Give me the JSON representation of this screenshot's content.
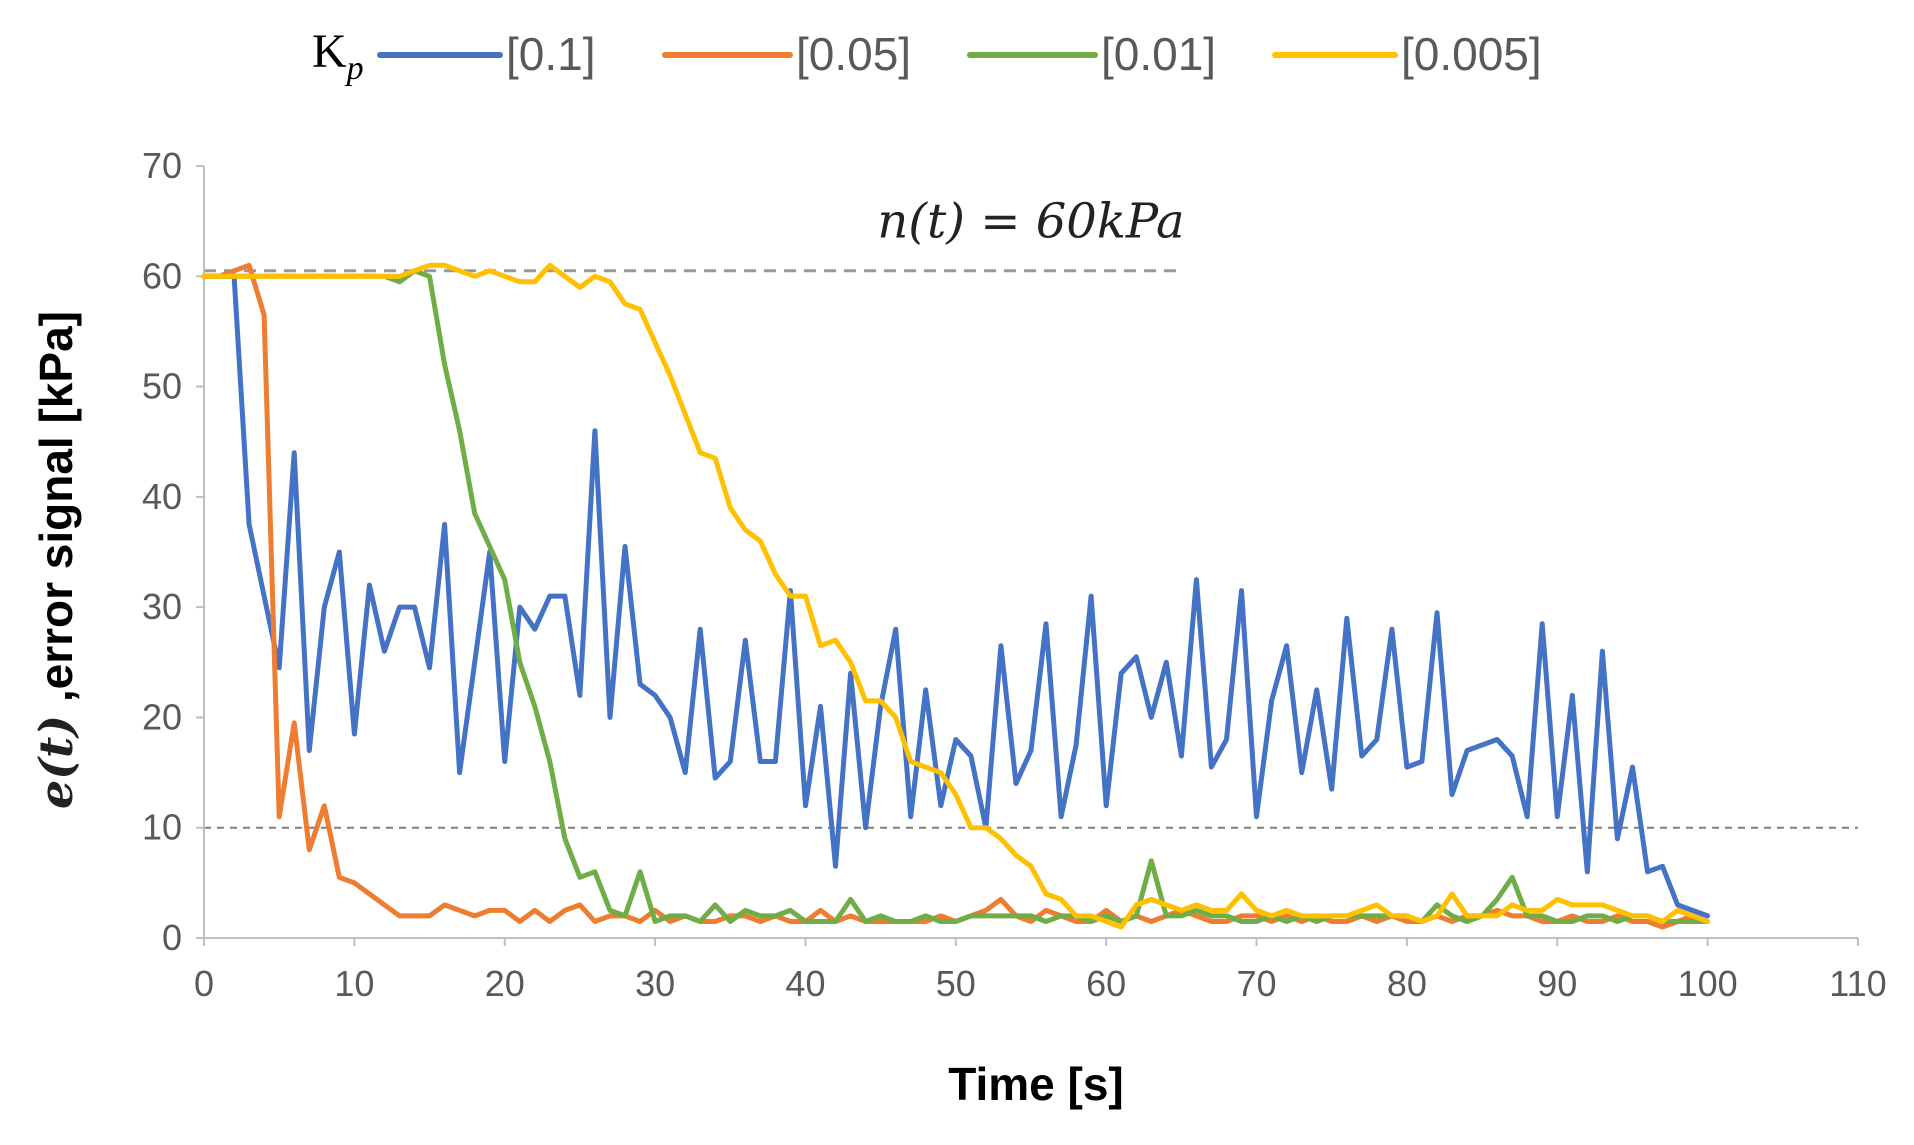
{
  "chart_data": {
    "type": "line",
    "title": "",
    "xlabel": "Time [s]",
    "ylabel_var": "e(t)",
    "ylabel_rest": " ,error signal [kPa]",
    "xlim": [
      0,
      110
    ],
    "ylim": [
      0,
      70
    ],
    "xticks": [
      0,
      10,
      20,
      30,
      40,
      50,
      60,
      70,
      80,
      90,
      100,
      110
    ],
    "yticks": [
      0,
      10,
      20,
      30,
      40,
      50,
      60,
      70
    ],
    "grid": false,
    "legend": {
      "placement": "top",
      "prefix_main": "K",
      "prefix_sub": "p",
      "entries": [
        "[0.1]",
        "[0.05]",
        "[0.01]",
        "[0.005]"
      ]
    },
    "annotations": [
      {
        "text": "n(t) = 60kPa",
        "x": 55,
        "y": 63.5
      },
      {
        "type": "hline",
        "y": 60.5,
        "x_range": [
          0,
          65
        ],
        "label": "setpoint"
      },
      {
        "type": "hline",
        "y": 10,
        "x_range": [
          0,
          110
        ],
        "label": "threshold"
      }
    ],
    "series": [
      {
        "name": "[0.1]",
        "color": "#4472C4",
        "x": [
          0,
          1,
          2,
          3,
          4,
          5,
          6,
          7,
          8,
          9,
          10,
          11,
          12,
          13,
          14,
          15,
          16,
          17,
          18,
          19,
          20,
          21,
          22,
          23,
          24,
          25,
          26,
          27,
          28,
          29,
          30,
          31,
          32,
          33,
          34,
          35,
          36,
          37,
          38,
          39,
          40,
          41,
          42,
          43,
          44,
          45,
          46,
          47,
          48,
          49,
          50,
          51,
          52,
          53,
          54,
          55,
          56,
          57,
          58,
          59,
          60,
          61,
          62,
          63,
          64,
          65,
          66,
          67,
          68,
          69,
          70,
          71,
          72,
          73,
          74,
          75,
          76,
          77,
          78,
          79,
          80,
          81,
          82,
          83,
          84,
          85,
          86,
          87,
          88,
          89,
          90,
          91,
          92,
          93,
          94,
          95,
          96,
          97,
          98,
          99,
          100
        ],
        "y": [
          60,
          60,
          60,
          37.5,
          31,
          24.5,
          44,
          17,
          30,
          35,
          18.5,
          32,
          26,
          30,
          30,
          24.5,
          37.5,
          15,
          25,
          35,
          16,
          30,
          28,
          31,
          31,
          22,
          46,
          20,
          35.5,
          23,
          22,
          20,
          15,
          28,
          14.5,
          16,
          27,
          16,
          16,
          31.5,
          12,
          21,
          6.5,
          24,
          10,
          21,
          28,
          11,
          22.5,
          12,
          18,
          16.5,
          10,
          26.5,
          14,
          17,
          28.5,
          11,
          17.5,
          31,
          12,
          24,
          25.5,
          20,
          25,
          16.5,
          32.5,
          15.5,
          18,
          31.5,
          11,
          21.5,
          26.5,
          15,
          22.5,
          13.5,
          29,
          16.5,
          18,
          28,
          15.5,
          16,
          29.5,
          13,
          17,
          17.5,
          18,
          16.5,
          11,
          28.5,
          11,
          22,
          6,
          26,
          9,
          15.5,
          6,
          6.5,
          3,
          2.5,
          2
        ]
      },
      {
        "name": "[0.05]",
        "color": "#ED7D31",
        "x": [
          0,
          1,
          2,
          3,
          4,
          5,
          6,
          7,
          8,
          9,
          10,
          11,
          12,
          13,
          14,
          15,
          16,
          17,
          18,
          19,
          20,
          21,
          22,
          23,
          24,
          25,
          26,
          27,
          28,
          29,
          30,
          31,
          32,
          33,
          34,
          35,
          36,
          37,
          38,
          39,
          40,
          41,
          42,
          43,
          44,
          45,
          46,
          47,
          48,
          49,
          50,
          51,
          52,
          53,
          54,
          55,
          56,
          57,
          58,
          59,
          60,
          61,
          62,
          63,
          64,
          65,
          66,
          67,
          68,
          69,
          70,
          71,
          72,
          73,
          74,
          75,
          76,
          77,
          78,
          79,
          80,
          81,
          82,
          83,
          84,
          85,
          86,
          87,
          88,
          89,
          90,
          91,
          92,
          93,
          94,
          95,
          96,
          97,
          98,
          99,
          100
        ],
        "y": [
          60,
          60,
          60.5,
          61,
          56.5,
          11,
          19.5,
          8,
          12,
          5.5,
          5,
          4,
          3,
          2,
          2,
          2,
          3,
          2.5,
          2,
          2.5,
          2.5,
          1.5,
          2.5,
          1.5,
          2.5,
          3,
          1.5,
          2,
          2,
          1.5,
          2.5,
          1.5,
          2,
          1.5,
          1.5,
          2,
          2,
          1.5,
          2,
          1.5,
          1.5,
          2.5,
          1.5,
          2,
          1.5,
          1.5,
          1.5,
          1.5,
          1.5,
          2,
          1.5,
          2,
          2.5,
          3.5,
          2,
          1.5,
          2.5,
          2,
          1.5,
          1.5,
          2.5,
          1.5,
          2,
          1.5,
          2,
          2.5,
          2,
          1.5,
          1.5,
          2,
          2,
          1.5,
          2,
          1.5,
          2,
          1.5,
          1.5,
          2,
          1.5,
          2,
          1.5,
          1.5,
          2,
          1.5,
          2,
          2,
          2.5,
          2,
          2,
          1.5,
          1.5,
          2,
          1.5,
          1.5,
          2,
          1.5,
          1.5,
          1,
          1.5,
          2,
          1.5
        ]
      },
      {
        "name": "[0.01]",
        "color": "#70AD47",
        "x": [
          0,
          1,
          2,
          3,
          4,
          5,
          6,
          7,
          8,
          9,
          10,
          11,
          12,
          13,
          14,
          15,
          16,
          17,
          18,
          19,
          20,
          21,
          22,
          23,
          24,
          25,
          26,
          27,
          28,
          29,
          30,
          31,
          32,
          33,
          34,
          35,
          36,
          37,
          38,
          39,
          40,
          41,
          42,
          43,
          44,
          45,
          46,
          47,
          48,
          49,
          50,
          51,
          52,
          53,
          54,
          55,
          56,
          57,
          58,
          59,
          60,
          61,
          62,
          63,
          64,
          65,
          66,
          67,
          68,
          69,
          70,
          71,
          72,
          73,
          74,
          75,
          76,
          77,
          78,
          79,
          80,
          81,
          82,
          83,
          84,
          85,
          86,
          87,
          88,
          89,
          90,
          91,
          92,
          93,
          94,
          95,
          96,
          97,
          98,
          99,
          100
        ],
        "y": [
          60,
          60,
          60,
          60,
          60,
          60,
          60,
          60,
          60,
          60,
          60,
          60,
          60,
          59.5,
          60.5,
          60,
          52,
          46,
          38.5,
          35.5,
          32.5,
          25,
          21,
          16,
          9,
          5.5,
          6,
          2.5,
          2,
          6,
          1.5,
          2,
          2,
          1.5,
          3,
          1.5,
          2.5,
          2,
          2,
          2.5,
          1.5,
          1.5,
          1.5,
          3.5,
          1.5,
          2,
          1.5,
          1.5,
          2,
          1.5,
          1.5,
          2,
          2,
          2,
          2,
          2,
          1.5,
          2,
          2,
          1.5,
          2,
          1.5,
          2,
          7,
          2,
          2,
          2.5,
          2,
          2,
          1.5,
          1.5,
          2,
          1.5,
          2,
          1.5,
          2,
          2,
          2,
          2,
          2,
          2,
          1.5,
          3,
          2,
          1.5,
          2,
          3.5,
          5.5,
          2,
          2,
          1.5,
          1.5,
          2,
          2,
          1.5,
          2,
          2,
          1.5,
          1.5,
          1.5,
          1.5
        ]
      },
      {
        "name": "[0.005]",
        "color": "#FFC000",
        "x": [
          0,
          1,
          2,
          3,
          4,
          5,
          6,
          7,
          8,
          9,
          10,
          11,
          12,
          13,
          14,
          15,
          16,
          17,
          18,
          19,
          20,
          21,
          22,
          23,
          24,
          25,
          26,
          27,
          28,
          29,
          30,
          31,
          32,
          33,
          34,
          35,
          36,
          37,
          38,
          39,
          40,
          41,
          42,
          43,
          44,
          45,
          46,
          47,
          48,
          49,
          50,
          51,
          52,
          53,
          54,
          55,
          56,
          57,
          58,
          59,
          60,
          61,
          62,
          63,
          64,
          65,
          66,
          67,
          68,
          69,
          70,
          71,
          72,
          73,
          74,
          75,
          76,
          77,
          78,
          79,
          80,
          81,
          82,
          83,
          84,
          85,
          86,
          87,
          88,
          89,
          90,
          91,
          92,
          93,
          94,
          95,
          96,
          97,
          98,
          99,
          100
        ],
        "y": [
          60,
          60,
          60,
          60,
          60,
          60,
          60,
          60,
          60,
          60,
          60,
          60,
          60,
          60,
          60.5,
          61,
          61,
          60.5,
          60,
          60.5,
          60,
          59.5,
          59.5,
          61,
          60,
          59,
          60,
          59.5,
          57.5,
          57,
          54,
          51,
          47.5,
          44,
          43.5,
          39,
          37,
          36,
          33,
          31,
          31,
          26.5,
          27,
          25,
          21.5,
          21.5,
          20,
          16,
          15.5,
          15,
          13,
          10,
          10,
          9,
          7.5,
          6.5,
          4,
          3.5,
          2,
          2,
          1.5,
          1,
          3,
          3.5,
          3,
          2.5,
          3,
          2.5,
          2.5,
          4,
          2.5,
          2,
          2.5,
          2,
          2,
          2,
          2,
          2.5,
          3,
          2,
          2,
          1.5,
          2,
          4,
          2,
          2,
          2,
          3,
          2.5,
          2.5,
          3.5,
          3,
          3,
          3,
          2.5,
          2,
          2,
          1.5,
          2.5,
          2,
          1.5
        ]
      }
    ]
  }
}
